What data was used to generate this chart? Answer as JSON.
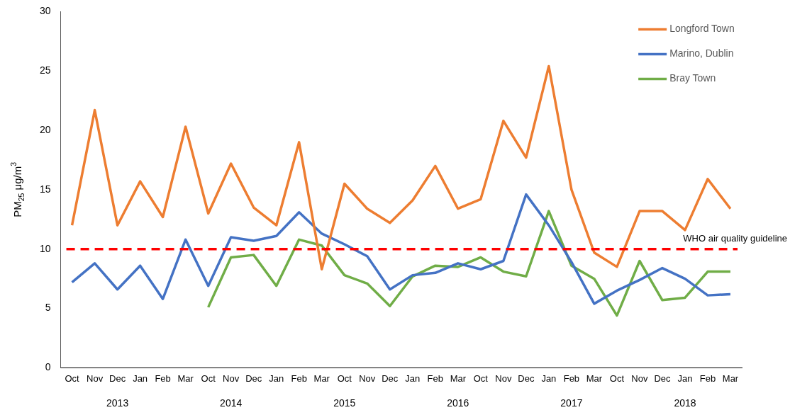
{
  "chart_data": {
    "type": "line",
    "ylabel": "PM$_{25}$ μg/m$^{3}$",
    "categories": [
      "Oct",
      "Nov",
      "Dec",
      "Jan",
      "Feb",
      "Mar",
      "Oct",
      "Nov",
      "Dec",
      "Jan",
      "Feb",
      "Mar",
      "Oct",
      "Nov",
      "Dec",
      "Jan",
      "Feb",
      "Mar",
      "Oct",
      "Nov",
      "Dec",
      "Jan",
      "Feb",
      "Mar",
      "Oct",
      "Nov",
      "Dec",
      "Jan",
      "Feb",
      "Mar"
    ],
    "series": [
      {
        "name": "Longford Town",
        "color": "#ed7d31",
        "values": [
          12.0,
          21.7,
          12.0,
          15.7,
          12.7,
          20.3,
          13.0,
          17.2,
          13.5,
          12.0,
          19.0,
          8.3,
          15.5,
          13.4,
          12.2,
          14.1,
          17.0,
          13.4,
          14.2,
          20.8,
          17.7,
          25.4,
          15.0,
          9.7,
          8.5,
          13.2,
          13.2,
          11.6,
          15.9,
          13.4
        ]
      },
      {
        "name": "Marino, Dublin",
        "color": "#4472c4",
        "values": [
          7.2,
          8.8,
          6.6,
          8.6,
          5.8,
          10.8,
          6.9,
          11.0,
          10.7,
          11.1,
          13.1,
          11.3,
          10.4,
          9.4,
          6.6,
          7.8,
          8.0,
          8.8,
          8.3,
          9.0,
          14.6,
          12.0,
          8.9,
          5.4,
          6.5,
          7.4,
          8.4,
          7.5,
          6.1,
          6.2
        ]
      },
      {
        "name": "Bray Town",
        "color": "#70ad47",
        "values": [
          null,
          null,
          null,
          null,
          null,
          null,
          5.1,
          9.3,
          9.5,
          6.9,
          10.8,
          10.3,
          7.8,
          7.1,
          5.2,
          7.7,
          8.6,
          8.5,
          9.3,
          8.1,
          7.7,
          13.2,
          8.6,
          7.5,
          4.4,
          9.0,
          5.7,
          5.9,
          8.1,
          8.1
        ]
      }
    ],
    "ylim": [
      0,
      30
    ],
    "yticks": [
      0,
      5,
      10,
      15,
      20,
      25,
      30
    ],
    "annotations": [
      "2013",
      "2014",
      "2015",
      "2016",
      "2017",
      "2018"
    ],
    "ref_lines": [
      {
        "axis": "y",
        "value": 10,
        "label": "WHO air quality guideline",
        "color": "#ff0000",
        "line_style": "dashed"
      }
    ],
    "grid": false,
    "legend": "top right",
    "marker": "none",
    "line_style": "solid"
  }
}
